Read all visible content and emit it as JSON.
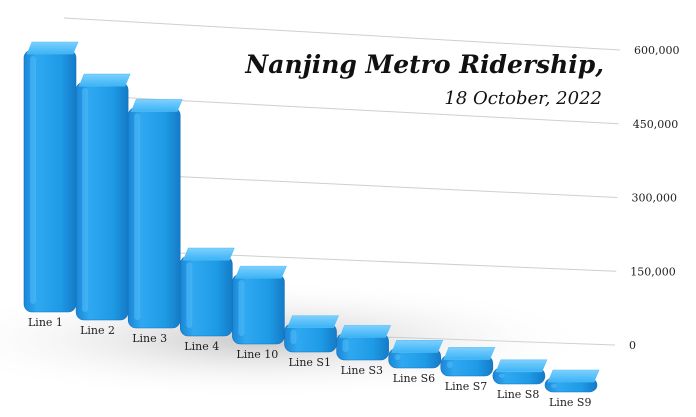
{
  "chart_data": {
    "type": "bar",
    "title": "Nanjing Metro Ridership,",
    "subtitle": "18 October, 2022",
    "xlabel": "",
    "ylabel": "",
    "categories": [
      "Line 1",
      "Line 2",
      "Line 3",
      "Line 4",
      "Line 10",
      "Line S1",
      "Line S3",
      "Line S6",
      "Line S7",
      "Line S8",
      "Line S9"
    ],
    "values": [
      600000,
      545000,
      505000,
      183000,
      160000,
      65000,
      61000,
      45000,
      47000,
      37000,
      20000
    ],
    "yticks": [
      "0",
      "150,000",
      "300,000",
      "450,000",
      "600,000"
    ],
    "ylim": [
      0,
      600000
    ],
    "grid": true,
    "legend": "none",
    "bar_color": "#1e9be6"
  }
}
